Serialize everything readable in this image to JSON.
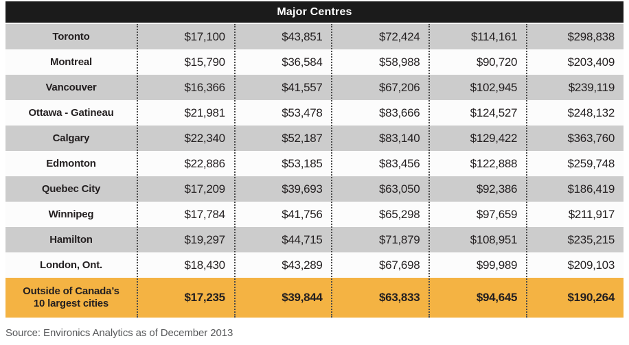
{
  "table": {
    "title": "Major Centres",
    "rows": [
      {
        "city": "Toronto",
        "values": [
          "$17,100",
          "$43,851",
          "$72,424",
          "$114,161",
          "$298,838"
        ]
      },
      {
        "city": "Montreal",
        "values": [
          "$15,790",
          "$36,584",
          "$58,988",
          "$90,720",
          "$203,409"
        ]
      },
      {
        "city": "Vancouver",
        "values": [
          "$16,366",
          "$41,557",
          "$67,206",
          "$102,945",
          "$239,119"
        ]
      },
      {
        "city": "Ottawa - Gatineau",
        "values": [
          "$21,981",
          "$53,478",
          "$83,666",
          "$124,527",
          "$248,132"
        ]
      },
      {
        "city": "Calgary",
        "values": [
          "$22,340",
          "$52,187",
          "$83,140",
          "$129,422",
          "$363,760"
        ]
      },
      {
        "city": "Edmonton",
        "values": [
          "$22,886",
          "$53,185",
          "$83,456",
          "$122,888",
          "$259,748"
        ]
      },
      {
        "city": "Quebec City",
        "values": [
          "$17,209",
          "$39,693",
          "$63,050",
          "$92,386",
          "$186,419"
        ]
      },
      {
        "city": "Winnipeg",
        "values": [
          "$17,784",
          "$41,756",
          "$65,298",
          "$97,659",
          "$211,917"
        ]
      },
      {
        "city": "Hamilton",
        "values": [
          "$19,297",
          "$44,715",
          "$71,879",
          "$108,951",
          "$235,215"
        ]
      },
      {
        "city": "London, Ont.",
        "values": [
          "$18,430",
          "$43,289",
          "$67,698",
          "$99,989",
          "$209,103"
        ]
      }
    ],
    "summary": {
      "label_line1": "Outside of Canada’s",
      "label_line2": "10 largest cities",
      "values": [
        "$17,235",
        "$39,844",
        "$63,833",
        "$94,645",
        "$190,264"
      ]
    }
  },
  "source": "Source: Environics Analytics as of December 2013",
  "colors": {
    "header_bg": "#1B1B1B",
    "header_text": "#FFFFFF",
    "row_shade": "#CCCCCC",
    "row_plain": "#FCFCFC",
    "summary_bg": "#F4B343",
    "text": "#231F20",
    "separator": "#4A4A4A",
    "source_text": "#58595B"
  },
  "chart_data": {
    "type": "table",
    "title": "Major Centres",
    "rows": [
      [
        "Toronto",
        17100,
        43851,
        72424,
        114161,
        298838
      ],
      [
        "Montreal",
        15790,
        36584,
        58988,
        90720,
        203409
      ],
      [
        "Vancouver",
        16366,
        41557,
        67206,
        102945,
        239119
      ],
      [
        "Ottawa - Gatineau",
        21981,
        53478,
        83666,
        124527,
        248132
      ],
      [
        "Calgary",
        22340,
        52187,
        83140,
        129422,
        363760
      ],
      [
        "Edmonton",
        22886,
        53185,
        83456,
        122888,
        259748
      ],
      [
        "Quebec City",
        17209,
        39693,
        63050,
        92386,
        186419
      ],
      [
        "Winnipeg",
        17784,
        41756,
        65298,
        97659,
        211917
      ],
      [
        "Hamilton",
        19297,
        44715,
        71879,
        108951,
        235215
      ],
      [
        "London, Ont.",
        18430,
        43289,
        67698,
        99989,
        209103
      ],
      [
        "Outside of Canada’s 10 largest cities",
        17235,
        39844,
        63833,
        94645,
        190264
      ]
    ],
    "source": "Source: Environics Analytics as of December 2013"
  }
}
